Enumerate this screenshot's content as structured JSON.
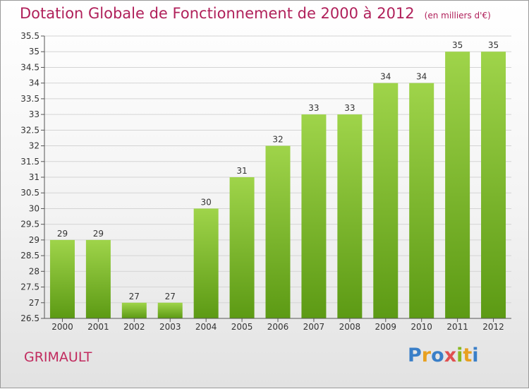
{
  "title": "Dotation Globale de Fonctionnement de 2000 à 2012",
  "subtitle": "(en milliers d'€)",
  "town": "GRIMAULT",
  "logo": "Proxiti",
  "colors": {
    "title": "#b0205a",
    "bar_top": "#9fd44a",
    "bar_bottom": "#5c9a14",
    "logo_letters": [
      "#3a7fc8",
      "#e8a020",
      "#3a7fc8",
      "#e05050",
      "#88b820",
      "#e8a020",
      "#3a7fc8"
    ]
  },
  "chart_data": {
    "type": "bar",
    "title": "Dotation Globale de Fonctionnement de 2000 à 2012",
    "subtitle": "(en milliers d'€)",
    "xlabel": "",
    "ylabel": "",
    "categories": [
      "2000",
      "2001",
      "2002",
      "2003",
      "2004",
      "2005",
      "2006",
      "2007",
      "2008",
      "2009",
      "2010",
      "2011",
      "2012"
    ],
    "values": [
      29,
      29,
      27,
      27,
      30,
      31,
      32,
      33,
      33,
      34,
      34,
      35,
      35
    ],
    "ylim": [
      26.5,
      35.5
    ],
    "ytick_step": 0.5,
    "yticks": [
      "26.5",
      "27",
      "27.5",
      "28",
      "28.5",
      "29",
      "29.5",
      "30",
      "30.5",
      "31",
      "31.5",
      "32",
      "32.5",
      "33",
      "33.5",
      "34",
      "34.5",
      "35",
      "35.5"
    ],
    "grid": true,
    "legend": "none"
  }
}
